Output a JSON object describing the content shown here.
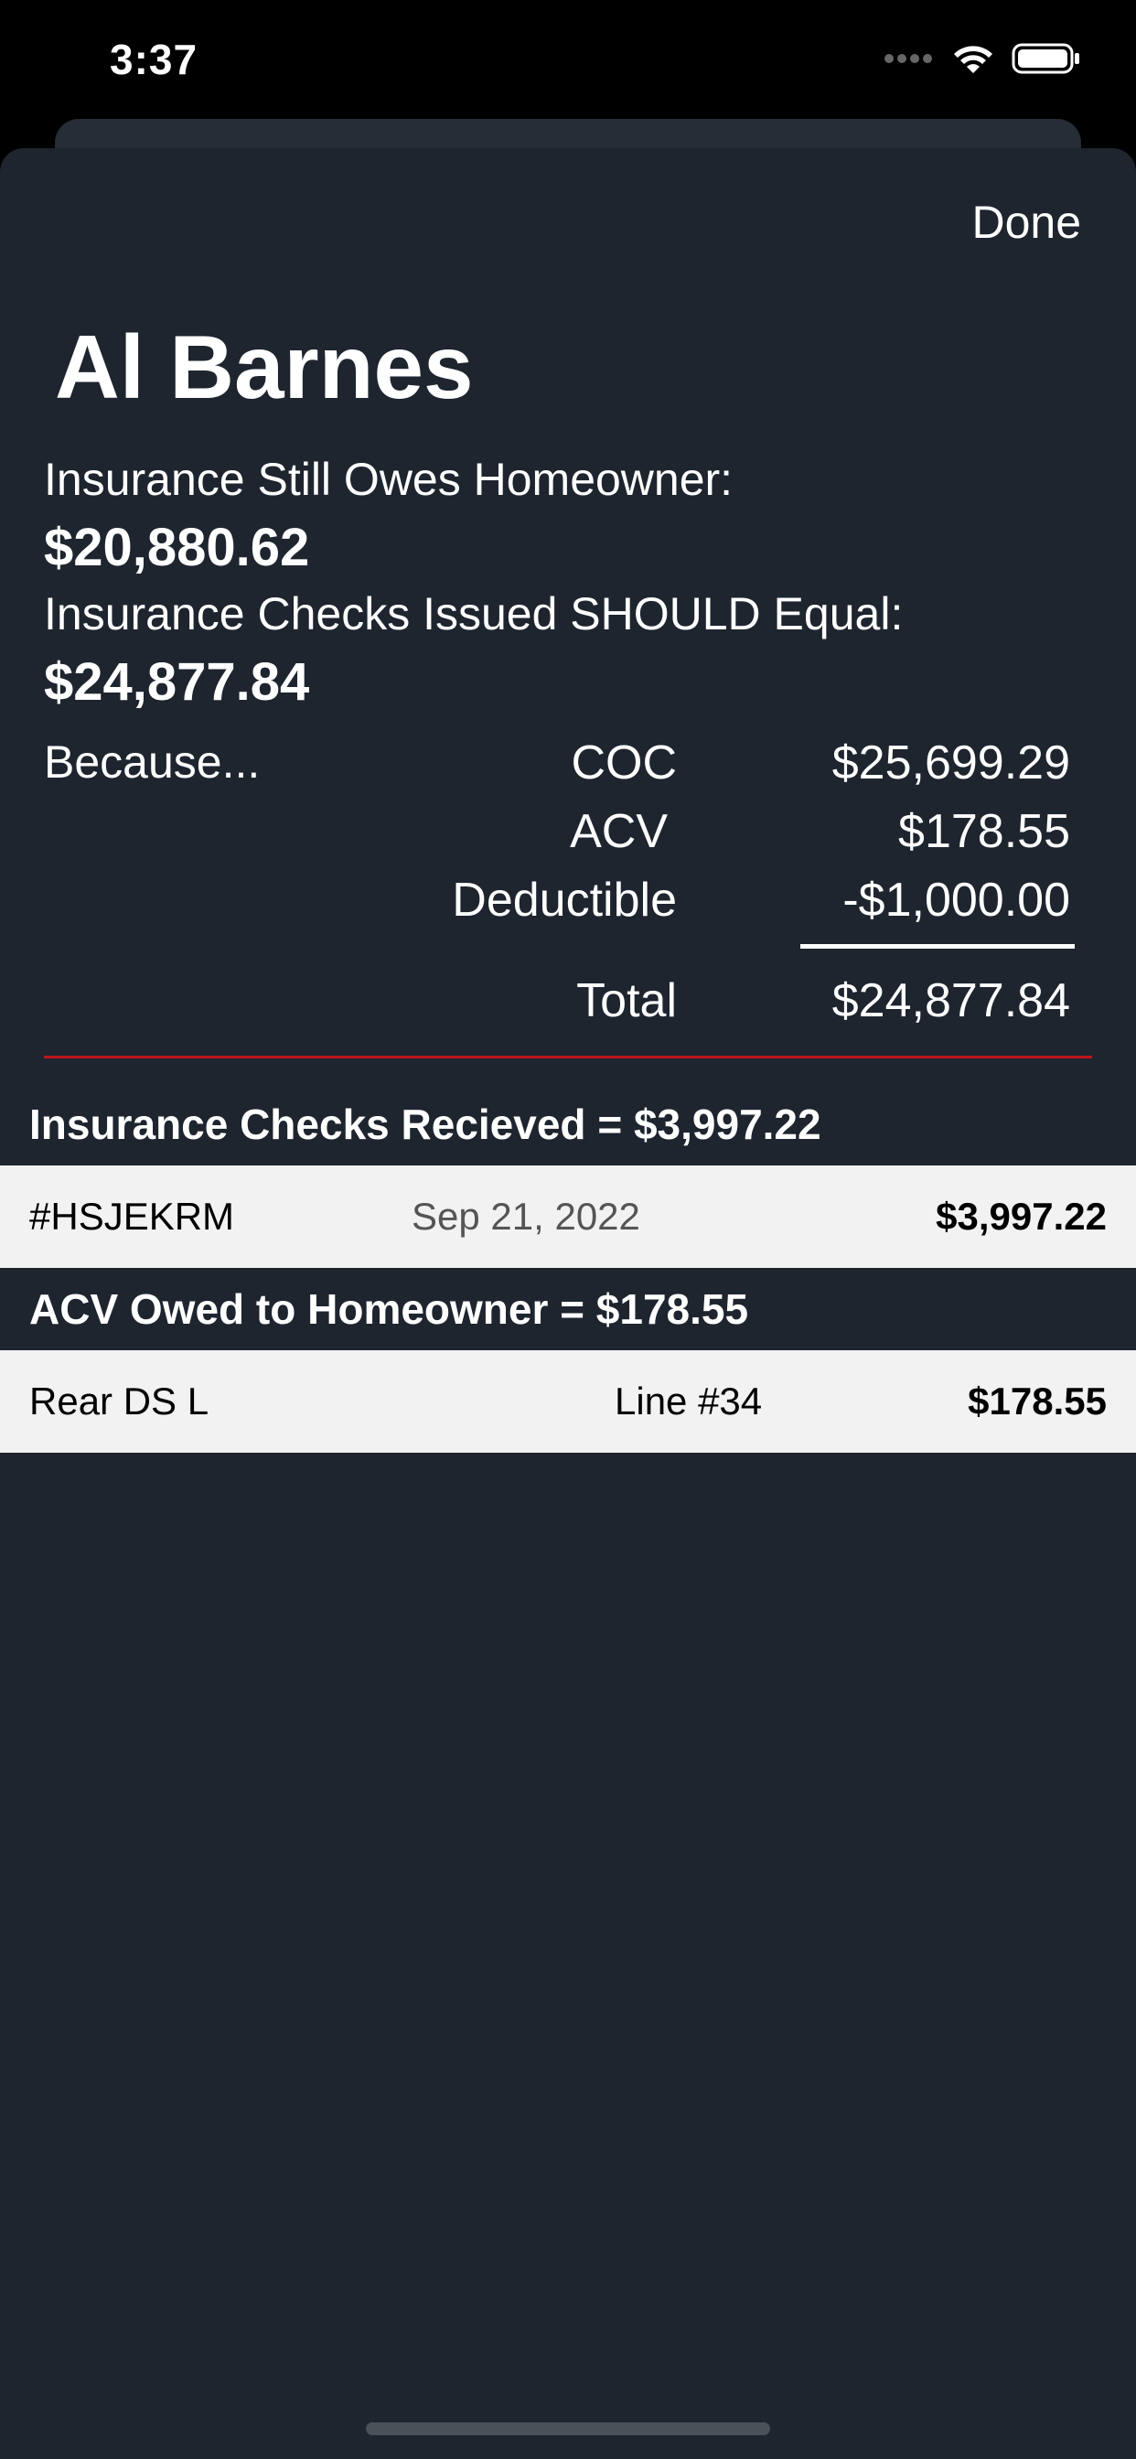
{
  "status_bar": {
    "time": "3:37",
    "icons": [
      "signal-icon",
      "wifi-icon",
      "battery-icon"
    ]
  },
  "header": {
    "done_label": "Done",
    "title": "Al Barnes"
  },
  "summary": {
    "still_owes_label": "Insurance Still Owes Homeowner:",
    "still_owes_value": "$20,880.62",
    "checks_should_equal_label": "Insurance Checks Issued SHOULD Equal:",
    "checks_should_equal_value": "$24,877.84",
    "because_label": "Because..."
  },
  "calculation": {
    "coc_label": "COC",
    "coc_value": "$25,699.29",
    "acv_label": "ACV",
    "acv_value": "$178.55",
    "deductible_label": "Deductible",
    "deductible_value": "-$1,000.00",
    "total_label": "Total",
    "total_value": "$24,877.84"
  },
  "checks_section": {
    "header": "Insurance Checks Recieved = $3,997.22",
    "rows": [
      {
        "id": "#HSJEKRM",
        "date": "Sep 21, 2022",
        "amount": "$3,997.22"
      }
    ]
  },
  "acv_section": {
    "header": "ACV Owed to Homeowner = $178.55",
    "rows": [
      {
        "name": "Rear DS L",
        "line": "Line #34",
        "amount": "$178.55"
      }
    ]
  },
  "colors": {
    "sheet_background": "#1e252f",
    "row_background": "#f2f2f2",
    "divider_red": "#c0161a"
  }
}
